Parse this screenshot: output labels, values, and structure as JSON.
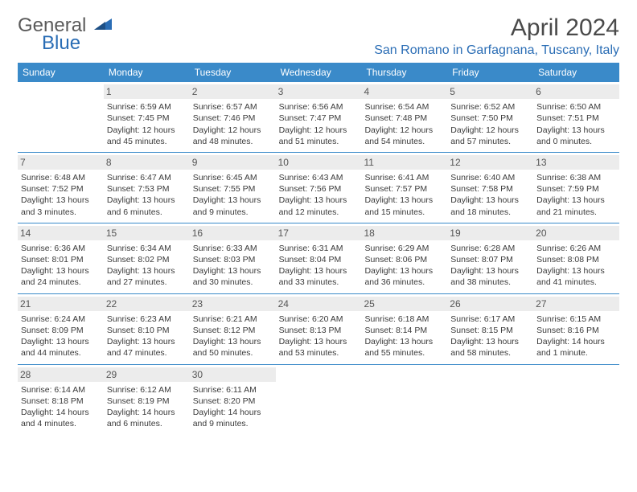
{
  "brand": {
    "part1": "General",
    "part2": "Blue"
  },
  "title": "April 2024",
  "location": "San Romano in Garfagnana, Tuscany, Italy",
  "colors": {
    "header_bg": "#3a8ac9",
    "accent": "#2a6db5",
    "cell_num_bg": "#ececec",
    "text": "#3a3a3a"
  },
  "dayNames": [
    "Sunday",
    "Monday",
    "Tuesday",
    "Wednesday",
    "Thursday",
    "Friday",
    "Saturday"
  ],
  "weeks": [
    [
      {
        "n": "",
        "sunrise": "",
        "sunset": "",
        "daylight": ""
      },
      {
        "n": "1",
        "sunrise": "Sunrise: 6:59 AM",
        "sunset": "Sunset: 7:45 PM",
        "daylight": "Daylight: 12 hours and 45 minutes."
      },
      {
        "n": "2",
        "sunrise": "Sunrise: 6:57 AM",
        "sunset": "Sunset: 7:46 PM",
        "daylight": "Daylight: 12 hours and 48 minutes."
      },
      {
        "n": "3",
        "sunrise": "Sunrise: 6:56 AM",
        "sunset": "Sunset: 7:47 PM",
        "daylight": "Daylight: 12 hours and 51 minutes."
      },
      {
        "n": "4",
        "sunrise": "Sunrise: 6:54 AM",
        "sunset": "Sunset: 7:48 PM",
        "daylight": "Daylight: 12 hours and 54 minutes."
      },
      {
        "n": "5",
        "sunrise": "Sunrise: 6:52 AM",
        "sunset": "Sunset: 7:50 PM",
        "daylight": "Daylight: 12 hours and 57 minutes."
      },
      {
        "n": "6",
        "sunrise": "Sunrise: 6:50 AM",
        "sunset": "Sunset: 7:51 PM",
        "daylight": "Daylight: 13 hours and 0 minutes."
      }
    ],
    [
      {
        "n": "7",
        "sunrise": "Sunrise: 6:48 AM",
        "sunset": "Sunset: 7:52 PM",
        "daylight": "Daylight: 13 hours and 3 minutes."
      },
      {
        "n": "8",
        "sunrise": "Sunrise: 6:47 AM",
        "sunset": "Sunset: 7:53 PM",
        "daylight": "Daylight: 13 hours and 6 minutes."
      },
      {
        "n": "9",
        "sunrise": "Sunrise: 6:45 AM",
        "sunset": "Sunset: 7:55 PM",
        "daylight": "Daylight: 13 hours and 9 minutes."
      },
      {
        "n": "10",
        "sunrise": "Sunrise: 6:43 AM",
        "sunset": "Sunset: 7:56 PM",
        "daylight": "Daylight: 13 hours and 12 minutes."
      },
      {
        "n": "11",
        "sunrise": "Sunrise: 6:41 AM",
        "sunset": "Sunset: 7:57 PM",
        "daylight": "Daylight: 13 hours and 15 minutes."
      },
      {
        "n": "12",
        "sunrise": "Sunrise: 6:40 AM",
        "sunset": "Sunset: 7:58 PM",
        "daylight": "Daylight: 13 hours and 18 minutes."
      },
      {
        "n": "13",
        "sunrise": "Sunrise: 6:38 AM",
        "sunset": "Sunset: 7:59 PM",
        "daylight": "Daylight: 13 hours and 21 minutes."
      }
    ],
    [
      {
        "n": "14",
        "sunrise": "Sunrise: 6:36 AM",
        "sunset": "Sunset: 8:01 PM",
        "daylight": "Daylight: 13 hours and 24 minutes."
      },
      {
        "n": "15",
        "sunrise": "Sunrise: 6:34 AM",
        "sunset": "Sunset: 8:02 PM",
        "daylight": "Daylight: 13 hours and 27 minutes."
      },
      {
        "n": "16",
        "sunrise": "Sunrise: 6:33 AM",
        "sunset": "Sunset: 8:03 PM",
        "daylight": "Daylight: 13 hours and 30 minutes."
      },
      {
        "n": "17",
        "sunrise": "Sunrise: 6:31 AM",
        "sunset": "Sunset: 8:04 PM",
        "daylight": "Daylight: 13 hours and 33 minutes."
      },
      {
        "n": "18",
        "sunrise": "Sunrise: 6:29 AM",
        "sunset": "Sunset: 8:06 PM",
        "daylight": "Daylight: 13 hours and 36 minutes."
      },
      {
        "n": "19",
        "sunrise": "Sunrise: 6:28 AM",
        "sunset": "Sunset: 8:07 PM",
        "daylight": "Daylight: 13 hours and 38 minutes."
      },
      {
        "n": "20",
        "sunrise": "Sunrise: 6:26 AM",
        "sunset": "Sunset: 8:08 PM",
        "daylight": "Daylight: 13 hours and 41 minutes."
      }
    ],
    [
      {
        "n": "21",
        "sunrise": "Sunrise: 6:24 AM",
        "sunset": "Sunset: 8:09 PM",
        "daylight": "Daylight: 13 hours and 44 minutes."
      },
      {
        "n": "22",
        "sunrise": "Sunrise: 6:23 AM",
        "sunset": "Sunset: 8:10 PM",
        "daylight": "Daylight: 13 hours and 47 minutes."
      },
      {
        "n": "23",
        "sunrise": "Sunrise: 6:21 AM",
        "sunset": "Sunset: 8:12 PM",
        "daylight": "Daylight: 13 hours and 50 minutes."
      },
      {
        "n": "24",
        "sunrise": "Sunrise: 6:20 AM",
        "sunset": "Sunset: 8:13 PM",
        "daylight": "Daylight: 13 hours and 53 minutes."
      },
      {
        "n": "25",
        "sunrise": "Sunrise: 6:18 AM",
        "sunset": "Sunset: 8:14 PM",
        "daylight": "Daylight: 13 hours and 55 minutes."
      },
      {
        "n": "26",
        "sunrise": "Sunrise: 6:17 AM",
        "sunset": "Sunset: 8:15 PM",
        "daylight": "Daylight: 13 hours and 58 minutes."
      },
      {
        "n": "27",
        "sunrise": "Sunrise: 6:15 AM",
        "sunset": "Sunset: 8:16 PM",
        "daylight": "Daylight: 14 hours and 1 minute."
      }
    ],
    [
      {
        "n": "28",
        "sunrise": "Sunrise: 6:14 AM",
        "sunset": "Sunset: 8:18 PM",
        "daylight": "Daylight: 14 hours and 4 minutes."
      },
      {
        "n": "29",
        "sunrise": "Sunrise: 6:12 AM",
        "sunset": "Sunset: 8:19 PM",
        "daylight": "Daylight: 14 hours and 6 minutes."
      },
      {
        "n": "30",
        "sunrise": "Sunrise: 6:11 AM",
        "sunset": "Sunset: 8:20 PM",
        "daylight": "Daylight: 14 hours and 9 minutes."
      },
      {
        "n": "",
        "sunrise": "",
        "sunset": "",
        "daylight": ""
      },
      {
        "n": "",
        "sunrise": "",
        "sunset": "",
        "daylight": ""
      },
      {
        "n": "",
        "sunrise": "",
        "sunset": "",
        "daylight": ""
      },
      {
        "n": "",
        "sunrise": "",
        "sunset": "",
        "daylight": ""
      }
    ]
  ]
}
